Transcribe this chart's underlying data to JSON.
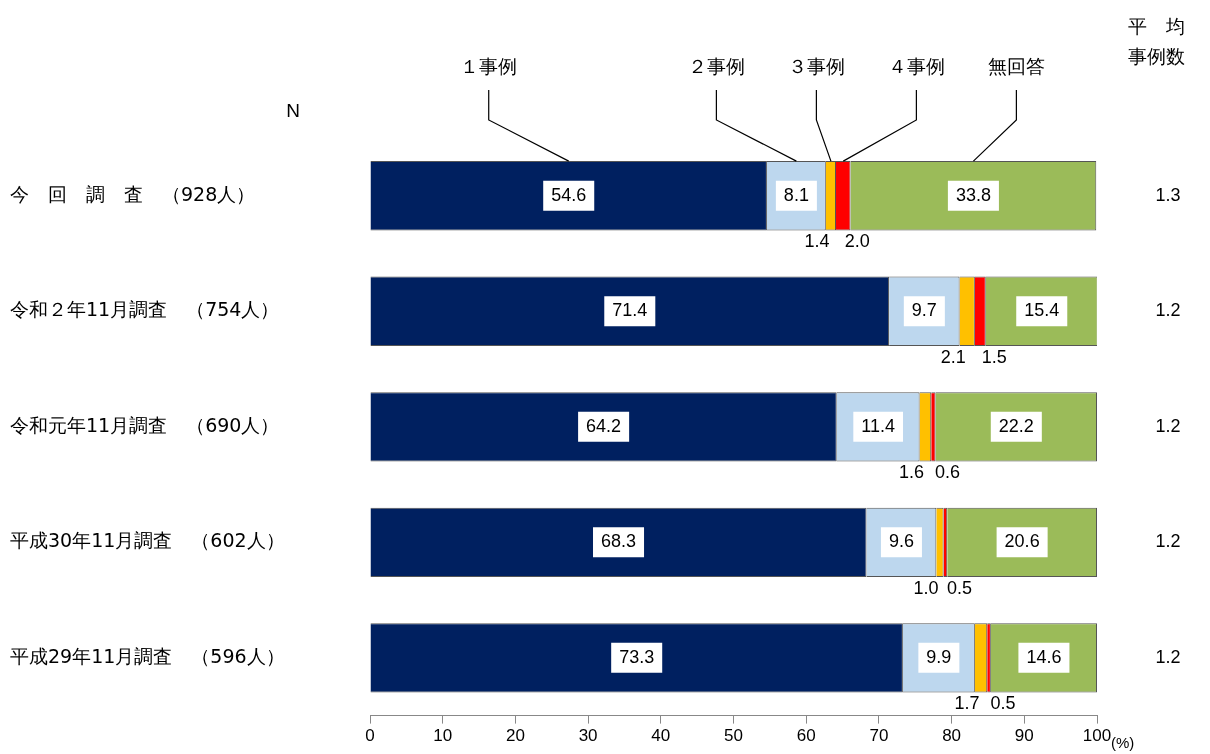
{
  "chart_data": {
    "type": "bar",
    "orientation": "horizontal",
    "stacked": true,
    "legend": "top",
    "ylabel": "N",
    "y2label": "平均事例数",
    "xlabel": "(%)",
    "categories": [
      "今　回　調　査　（928人）",
      "令和２年11月調査　（754人）",
      "令和元年11月調査　（690人）",
      "平成30年11月調査　（602人）",
      "平成29年11月調査　（596人）"
    ],
    "series": [
      {
        "name": "１事例",
        "color": "#002060",
        "values": [
          54.6,
          71.4,
          64.2,
          68.3,
          73.3
        ],
        "value_labels": [
          "54.6",
          "71.4",
          "64.2",
          "68.3",
          "73.3"
        ]
      },
      {
        "name": "２事例",
        "color": "#bdd7ee",
        "values": [
          8.1,
          9.7,
          11.4,
          9.6,
          9.9
        ],
        "value_labels": [
          "8.1",
          "9.7",
          "11.4",
          "9.6",
          "9.9"
        ]
      },
      {
        "name": "３事例",
        "color": "#ffc000",
        "values": [
          1.4,
          2.1,
          1.6,
          1.0,
          1.7
        ],
        "value_labels": [
          "1.4",
          "2.1",
          "1.6",
          "1.0",
          "1.7"
        ]
      },
      {
        "name": "４事例",
        "color": "#ff0000",
        "values": [
          2.0,
          1.5,
          0.6,
          0.5,
          0.5
        ],
        "value_labels": [
          "2.0",
          "1.5",
          "0.6",
          "0.5",
          "0.5"
        ]
      },
      {
        "name": "無回答",
        "color": "#9bbb59",
        "values": [
          33.8,
          15.4,
          22.2,
          20.6,
          14.6
        ],
        "value_labels": [
          "33.8",
          "15.4",
          "22.2",
          "20.6",
          "14.6"
        ]
      }
    ],
    "annotations": [
      "1.3",
      "1.2",
      "1.2",
      "1.2",
      "1.2"
    ],
    "xlim": [
      0,
      100
    ],
    "xticks": [
      0,
      10,
      20,
      30,
      40,
      50,
      60,
      70,
      80,
      90,
      100
    ],
    "grid": false
  }
}
